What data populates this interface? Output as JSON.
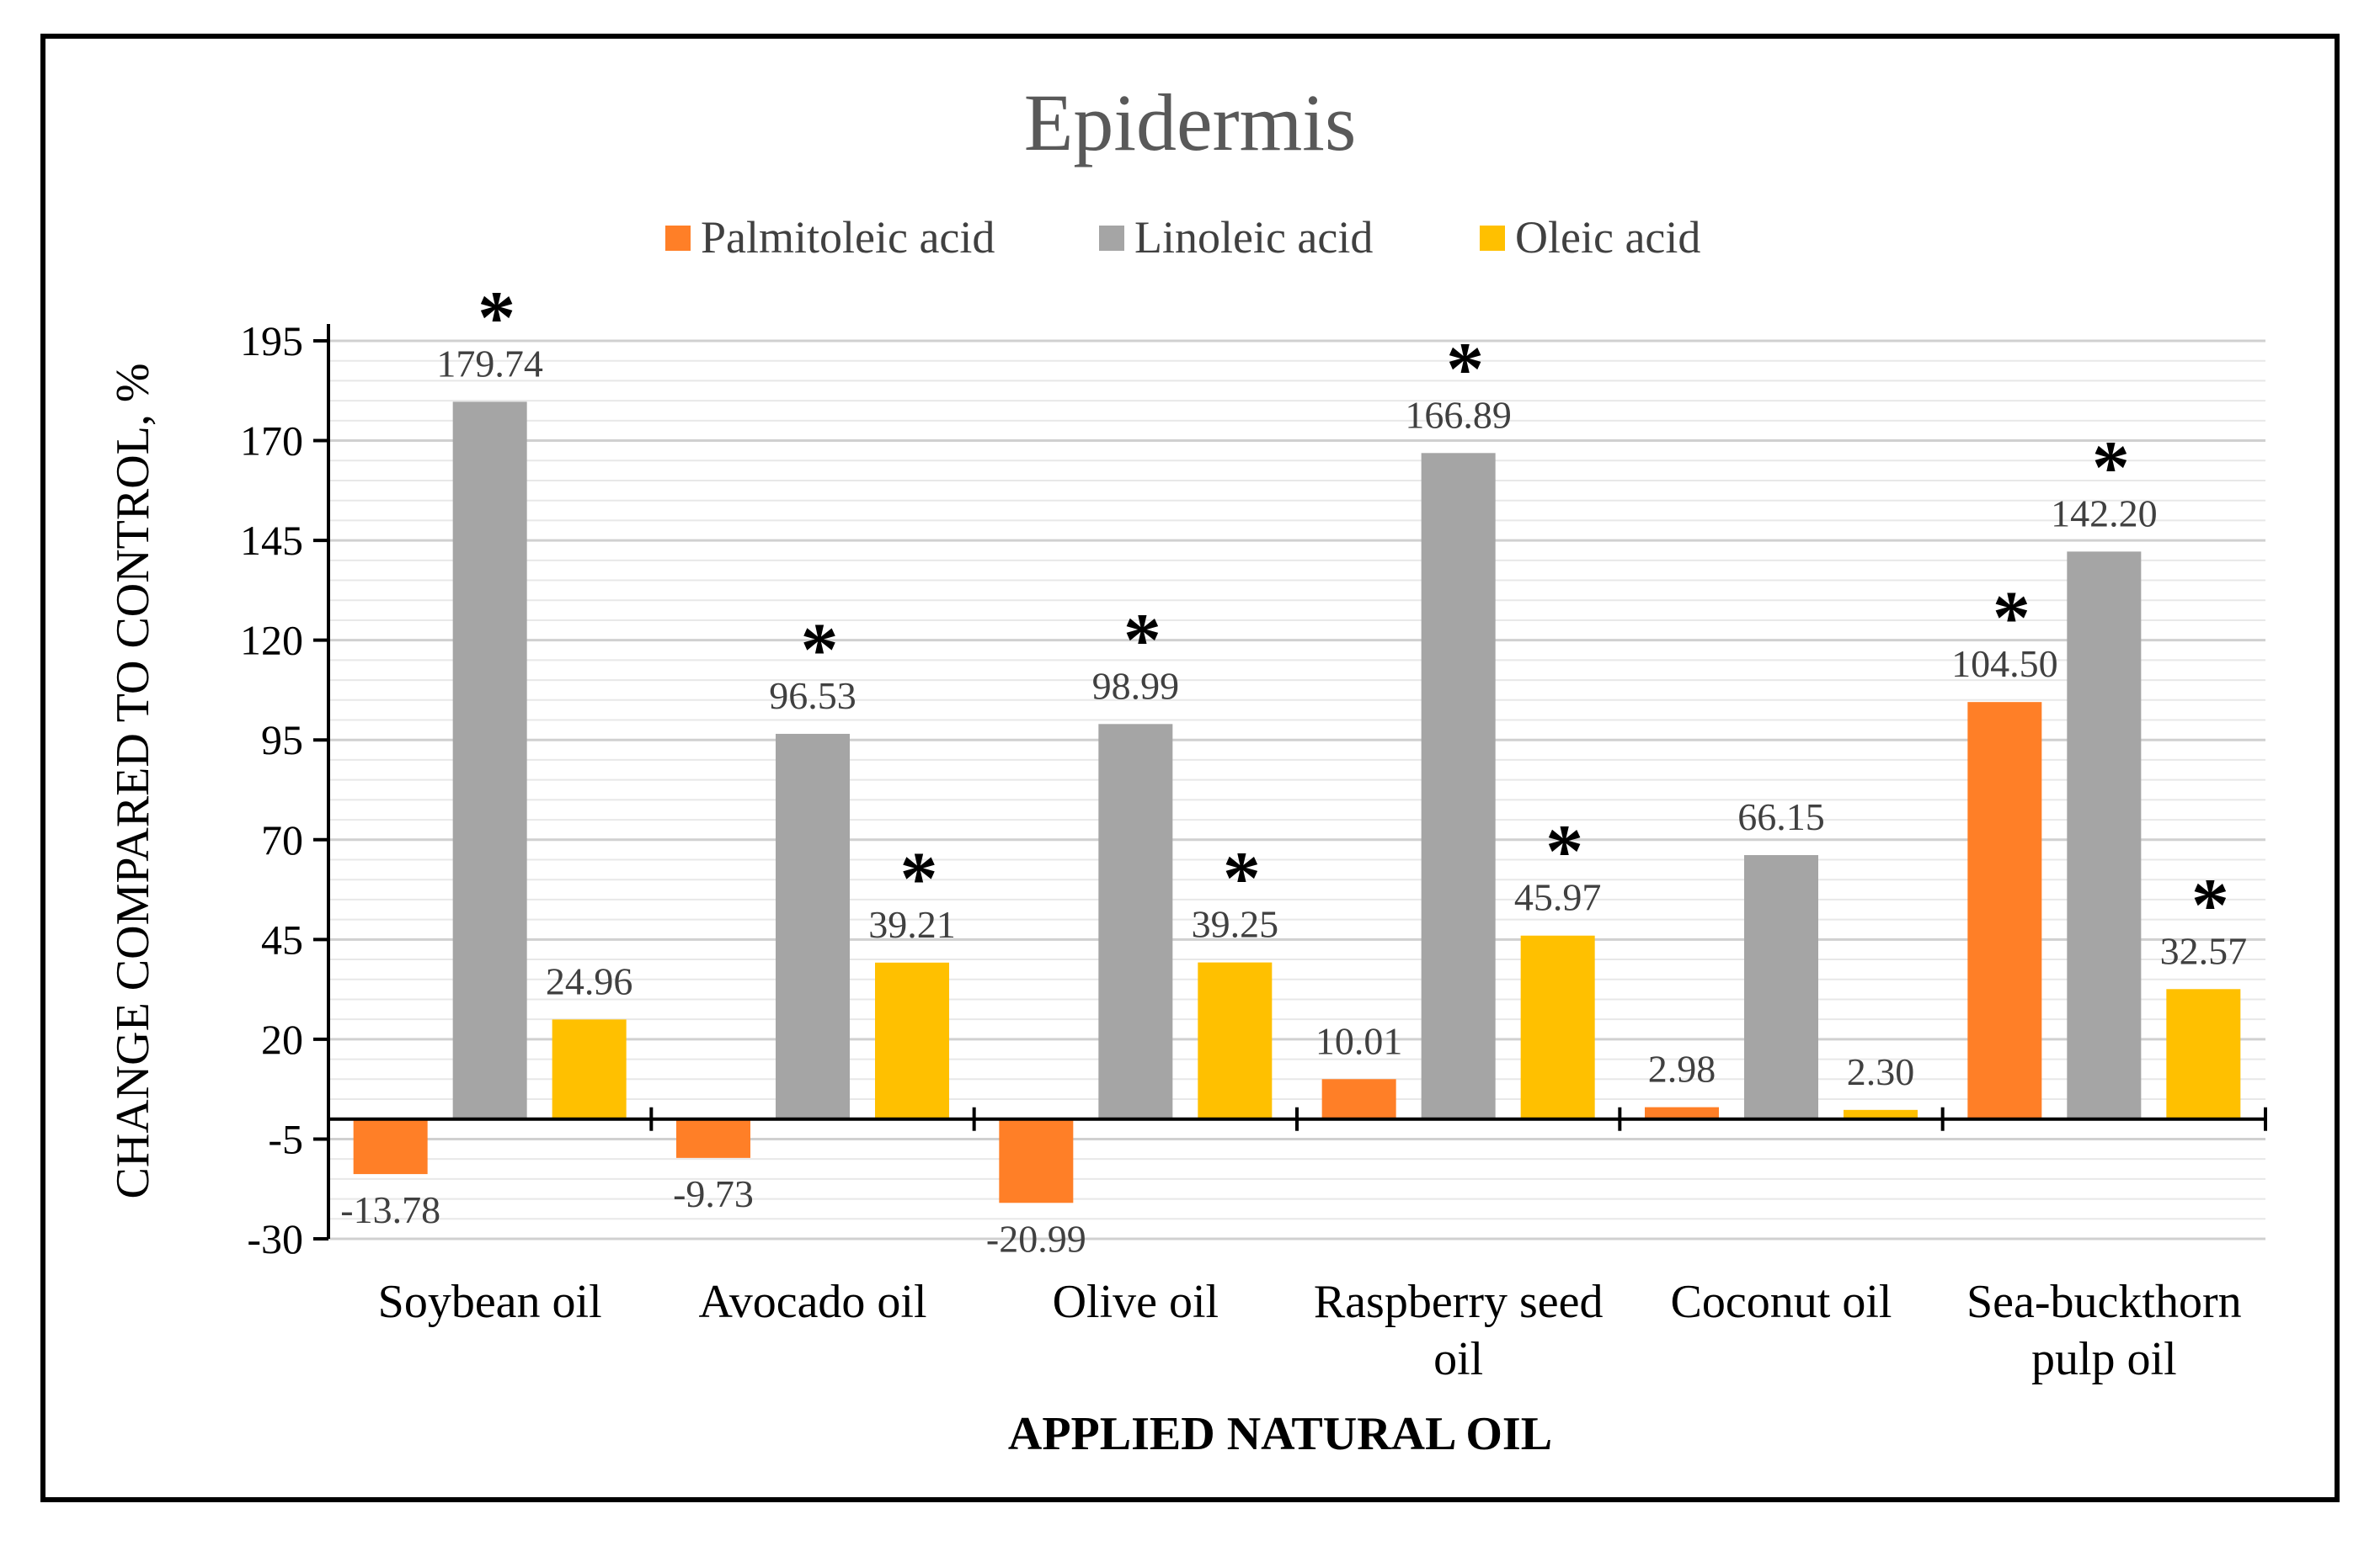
{
  "chart_data": {
    "type": "bar",
    "title": "Epidermis",
    "xlabel": "APPLIED NATURAL OIL",
    "ylabel": "CHANGE  COMPARED TO CONTROL, %",
    "ylim": [
      -30,
      195
    ],
    "yticks": [
      195,
      170,
      145,
      120,
      95,
      70,
      45,
      20,
      -5,
      -30
    ],
    "ytick_labels": [
      "195",
      "170",
      "145",
      "120",
      "95",
      "70",
      "45",
      "20",
      "-5",
      "-30"
    ],
    "categories": [
      [
        "Soybean oil"
      ],
      [
        "Avocado oil"
      ],
      [
        "Olive oil"
      ],
      [
        "Raspberry seed",
        "oil"
      ],
      [
        "Coconut oil"
      ],
      [
        "Sea-buckthorn",
        "pulp oil"
      ]
    ],
    "series": [
      {
        "name": "Palmitoleic acid",
        "color": "#FF7F27",
        "values": [
          -13.78,
          -9.73,
          -20.99,
          10.01,
          2.98,
          104.5
        ],
        "labels": [
          "-13.78",
          "-9.73",
          "-20.99",
          "10.01",
          "2.98",
          "104.50"
        ],
        "significant": [
          false,
          false,
          false,
          false,
          false,
          true
        ]
      },
      {
        "name": "Linoleic acid",
        "color": "#A5A5A5",
        "values": [
          179.74,
          96.53,
          98.99,
          166.89,
          66.15,
          142.2
        ],
        "labels": [
          "179.74",
          "96.53",
          "98.99",
          "166.89",
          "66.15",
          "142.20"
        ],
        "significant": [
          true,
          true,
          true,
          true,
          false,
          true
        ]
      },
      {
        "name": "Oleic acid",
        "color": "#FFC000",
        "values": [
          24.96,
          39.21,
          39.25,
          45.97,
          2.3,
          32.57
        ],
        "labels": [
          "24.96",
          "39.21",
          "39.25",
          "45.97",
          "2.30",
          "32.57"
        ],
        "significant": [
          false,
          true,
          true,
          true,
          false,
          true
        ]
      }
    ],
    "significance_marker": "*",
    "legend_position": "top-center",
    "grid": true
  }
}
